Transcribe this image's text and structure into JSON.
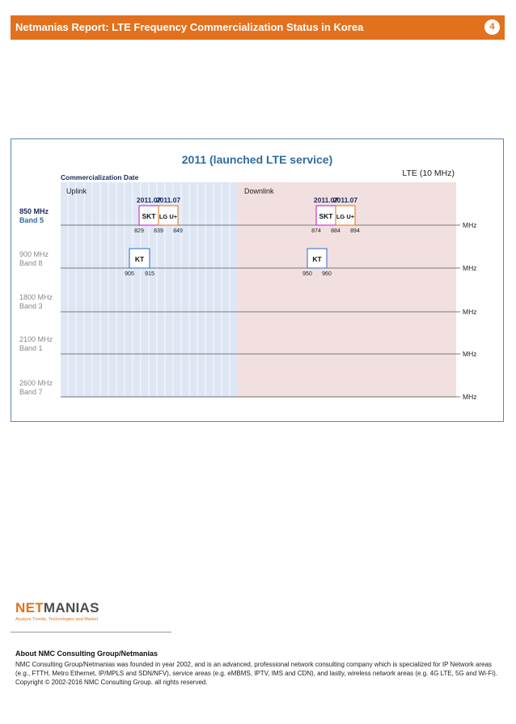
{
  "header": {
    "title": "Netmanias Report: LTE Frequency Commercialization Status in Korea",
    "page_number": "4"
  },
  "chart": {
    "title": "2011 (launched LTE service)",
    "commercialization_label": "Commercialization Date",
    "lte_label": "LTE (10 MHz)",
    "uplink_label": "Uplink",
    "downlink_label": "Downlink",
    "unit": "MHz",
    "colors": {
      "uplink_bg": "#dfe7f5",
      "downlink_bg": "#f2dfdf",
      "skt": "#c01ac0",
      "lgu": "#e2711d",
      "kt": "#2e6bbf"
    },
    "bands": [
      {
        "freq": "850 MHz",
        "band": "Band 5"
      },
      {
        "freq": "900 MHz",
        "band": "Band 8"
      },
      {
        "freq": "1800 MHz",
        "band": "Band 3"
      },
      {
        "freq": "2100 MHz",
        "band": "Band 1"
      },
      {
        "freq": "2600 MHz",
        "band": "Band 7"
      }
    ],
    "blocks": [
      {
        "label": "SKT",
        "side": "uplink",
        "band": 0,
        "date": "2011.07",
        "ticks": [
          "829",
          "839"
        ],
        "color": "skt"
      },
      {
        "label": "LG U+",
        "side": "uplink",
        "band": 0,
        "date": "2011.07",
        "ticks": [
          "849"
        ],
        "color": "lgu"
      },
      {
        "label": "KT",
        "side": "uplink",
        "band": 1,
        "date": "",
        "ticks": [
          "905",
          "915"
        ],
        "color": "kt"
      },
      {
        "label": "SKT",
        "side": "downlink",
        "band": 0,
        "date": "2011.07",
        "ticks": [
          "874",
          "884"
        ],
        "color": "skt"
      },
      {
        "label": "LG U+",
        "side": "downlink",
        "band": 0,
        "date": "2011.07",
        "ticks": [
          "894"
        ],
        "color": "lgu"
      },
      {
        "label": "KT",
        "side": "downlink",
        "band": 1,
        "date": "",
        "ticks": [
          "950",
          "960"
        ],
        "color": "kt"
      }
    ]
  },
  "footer": {
    "logo_net": "NET",
    "logo_manias": "MANIAS",
    "logo_tagline": "Analyze Trends, Technologies and Market",
    "about_heading": "About NMC Consulting Group/Netmanias",
    "about_text": "NMC Consulting Group/Netmanias was founded in year 2002, and is an advanced, professional network consulting company which is specialized for IP Network areas (e.g., FTTH, Metro Ethernet, IP/MPLS and SDN/NFV), service areas (e.g. eMBMS, IPTV, IMS and CDN), and lastly, wireless network areas (e.g. 4G LTE, 5G and Wi-Fi).",
    "copyright": "Copyright © 2002-2016 NMC Consulting Group. all rights reserved."
  }
}
